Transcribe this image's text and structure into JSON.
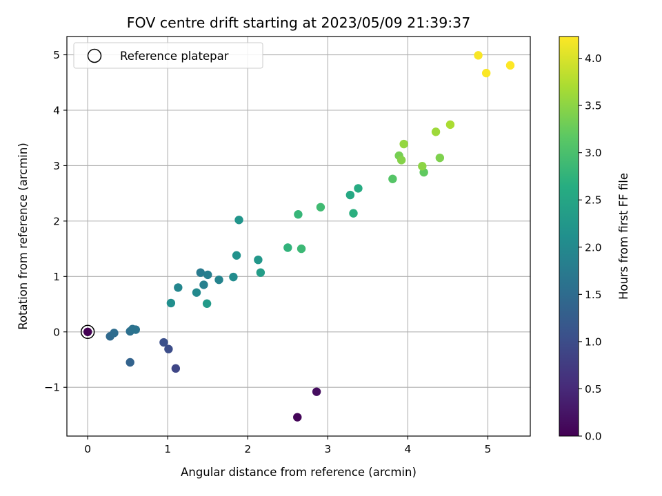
{
  "chart_data": {
    "type": "scatter",
    "title": "FOV centre drift starting at 2023/05/09 21:39:37",
    "xlabel": "Angular distance from reference (arcmin)",
    "ylabel": "Rotation from reference (arcmin)",
    "xlim": [
      -0.26,
      5.53
    ],
    "ylim": [
      -1.88,
      5.33
    ],
    "xticks": [
      0,
      1,
      2,
      3,
      4,
      5
    ],
    "xtick_labels": [
      "0",
      "1",
      "2",
      "3",
      "4",
      "5"
    ],
    "yticks": [
      -1,
      0,
      1,
      2,
      3,
      4,
      5
    ],
    "ytick_labels": [
      "−1",
      "0",
      "1",
      "2",
      "3",
      "4",
      "5"
    ],
    "grid": true,
    "legend": {
      "location": "upper-left",
      "entries": [
        {
          "label": "Reference platepar",
          "marker": "open-circle"
        }
      ]
    },
    "reference_point": {
      "x": 0,
      "y": 0
    },
    "colorbar": {
      "label": "Hours from first FF file",
      "colormap": "viridis",
      "range": [
        0,
        4.23
      ],
      "ticks": [
        0,
        0.5,
        1,
        1.5,
        2,
        2.5,
        3,
        3.5,
        4
      ],
      "tick_labels": [
        "0.0",
        "0.5",
        "1.0",
        "1.5",
        "2.0",
        "2.5",
        "3.0",
        "3.5",
        "4.0"
      ]
    },
    "points": [
      {
        "x": 0.0,
        "y": 0.0,
        "hours": 0.0
      },
      {
        "x": 2.62,
        "y": -1.54,
        "hours": 0.05
      },
      {
        "x": 2.86,
        "y": -1.08,
        "hours": 0.15
      },
      {
        "x": 1.1,
        "y": -0.66,
        "hours": 0.9
      },
      {
        "x": 1.01,
        "y": -0.31,
        "hours": 1.0
      },
      {
        "x": 0.95,
        "y": -0.19,
        "hours": 1.05
      },
      {
        "x": 0.53,
        "y": -0.55,
        "hours": 1.35
      },
      {
        "x": 0.28,
        "y": -0.08,
        "hours": 1.45
      },
      {
        "x": 0.33,
        "y": -0.02,
        "hours": 1.5
      },
      {
        "x": 0.53,
        "y": 0.01,
        "hours": 1.55
      },
      {
        "x": 0.56,
        "y": 0.05,
        "hours": 1.6
      },
      {
        "x": 0.6,
        "y": 0.04,
        "hours": 1.62
      },
      {
        "x": 1.41,
        "y": 1.07,
        "hours": 1.75
      },
      {
        "x": 1.5,
        "y": 1.03,
        "hours": 1.8
      },
      {
        "x": 1.45,
        "y": 0.85,
        "hours": 1.85
      },
      {
        "x": 1.64,
        "y": 0.94,
        "hours": 1.9
      },
      {
        "x": 1.13,
        "y": 0.8,
        "hours": 1.95
      },
      {
        "x": 1.36,
        "y": 0.71,
        "hours": 2.0
      },
      {
        "x": 1.82,
        "y": 0.99,
        "hours": 2.05
      },
      {
        "x": 1.04,
        "y": 0.52,
        "hours": 2.1
      },
      {
        "x": 1.86,
        "y": 1.38,
        "hours": 2.15
      },
      {
        "x": 1.89,
        "y": 2.02,
        "hours": 2.2
      },
      {
        "x": 2.13,
        "y": 1.3,
        "hours": 2.25
      },
      {
        "x": 1.49,
        "y": 0.51,
        "hours": 2.3
      },
      {
        "x": 2.16,
        "y": 1.07,
        "hours": 2.35
      },
      {
        "x": 3.28,
        "y": 2.47,
        "hours": 2.55
      },
      {
        "x": 3.38,
        "y": 2.59,
        "hours": 2.6
      },
      {
        "x": 3.32,
        "y": 2.14,
        "hours": 2.68
      },
      {
        "x": 2.5,
        "y": 1.52,
        "hours": 2.75
      },
      {
        "x": 2.63,
        "y": 2.12,
        "hours": 2.8
      },
      {
        "x": 2.67,
        "y": 1.5,
        "hours": 2.85
      },
      {
        "x": 2.91,
        "y": 2.25,
        "hours": 2.9
      },
      {
        "x": 3.81,
        "y": 2.76,
        "hours": 3.1
      },
      {
        "x": 4.2,
        "y": 2.88,
        "hours": 3.2
      },
      {
        "x": 3.89,
        "y": 3.18,
        "hours": 3.35
      },
      {
        "x": 4.4,
        "y": 3.14,
        "hours": 3.4
      },
      {
        "x": 3.92,
        "y": 3.1,
        "hours": 3.45
      },
      {
        "x": 4.18,
        "y": 2.99,
        "hours": 3.5
      },
      {
        "x": 3.95,
        "y": 3.39,
        "hours": 3.55
      },
      {
        "x": 4.35,
        "y": 3.61,
        "hours": 3.62
      },
      {
        "x": 4.53,
        "y": 3.74,
        "hours": 3.7
      },
      {
        "x": 4.88,
        "y": 4.99,
        "hours": 4.2
      },
      {
        "x": 4.98,
        "y": 4.67,
        "hours": 4.21
      },
      {
        "x": 5.28,
        "y": 4.81,
        "hours": 4.23
      }
    ]
  }
}
